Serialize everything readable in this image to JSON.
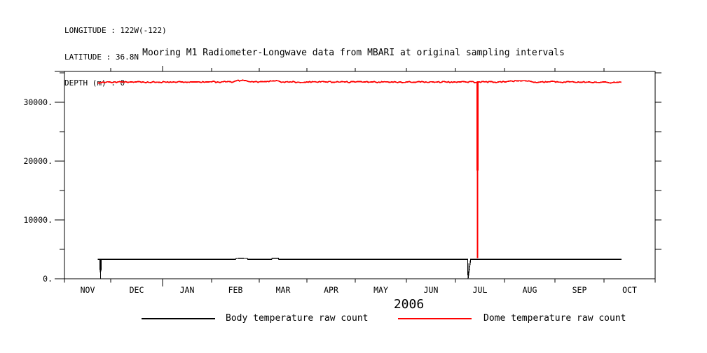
{
  "page": {
    "background": "#ffffff"
  },
  "header": {
    "longitude": "LONGITUDE : 122W(-122)",
    "latitude": "LATITUDE : 36.8N",
    "depth": "DEPTH (m) : 0"
  },
  "legend": {
    "items": [
      {
        "label": "Body temperature raw count",
        "color": "#000000"
      },
      {
        "label": "Dome temperature raw count",
        "color": "#ff0000"
      }
    ]
  },
  "chart_data": {
    "type": "line",
    "title": "Mooring M1 Radiometer-Longwave data from MBARI at original sampling intervals",
    "xlabel": "",
    "ylabel": "",
    "x_axis": {
      "months": [
        "NOV",
        "DEC",
        "JAN",
        "FEB",
        "MAR",
        "APR",
        "MAY",
        "JUN",
        "JUL",
        "AUG",
        "SEP",
        "OCT"
      ],
      "year_label": "2006",
      "start": "1 Nov 2005",
      "end": "1 Nov 2006",
      "unit": "months since 1 Nov 2005"
    },
    "y_axis": {
      "tick_values": [
        0,
        10000,
        20000,
        30000
      ],
      "tick_labels": [
        "0.",
        "10000.",
        "20000.",
        "30000."
      ],
      "minor_tick_values": [
        5000,
        15000,
        25000,
        35000
      ],
      "range": [
        0,
        35200
      ],
      "grid": false
    },
    "series": [
      {
        "name": "Body temperature raw count",
        "color": "#000000",
        "width": 1.3,
        "points": [
          [
            0.72,
            3300
          ],
          [
            0.775,
            3300
          ],
          [
            0.78,
            60
          ],
          [
            0.785,
            3300
          ],
          [
            3.5,
            3300
          ],
          [
            3.52,
            3450
          ],
          [
            3.56,
            3450
          ],
          [
            3.57,
            3500
          ],
          [
            3.66,
            3500
          ],
          [
            3.68,
            3450
          ],
          [
            3.75,
            3450
          ],
          [
            3.76,
            3300
          ],
          [
            4.26,
            3300
          ],
          [
            4.27,
            3500
          ],
          [
            4.4,
            3500
          ],
          [
            4.41,
            3300
          ],
          [
            8.25,
            3300
          ],
          [
            8.257,
            20
          ],
          [
            8.31,
            3300
          ],
          [
            11.34,
            3300
          ]
        ]
      },
      {
        "name": "Dome temperature raw count",
        "color": "#ff0000",
        "width": 1.8,
        "noise_amplitude": 110,
        "points": [
          [
            0.72,
            33300
          ],
          [
            0.8,
            33350
          ],
          [
            0.9,
            33420
          ],
          [
            1.05,
            33380
          ],
          [
            1.2,
            33470
          ],
          [
            1.35,
            33400
          ],
          [
            1.5,
            33450
          ],
          [
            1.65,
            33380
          ],
          [
            1.8,
            33440
          ],
          [
            1.95,
            33400
          ],
          [
            2.1,
            33470
          ],
          [
            2.25,
            33420
          ],
          [
            2.4,
            33460
          ],
          [
            2.55,
            33400
          ],
          [
            2.7,
            33450
          ],
          [
            2.85,
            33410
          ],
          [
            3.0,
            33470
          ],
          [
            3.15,
            33420
          ],
          [
            3.3,
            33460
          ],
          [
            3.45,
            33430
          ],
          [
            3.52,
            33650
          ],
          [
            3.62,
            33700
          ],
          [
            3.75,
            33600
          ],
          [
            3.82,
            33460
          ],
          [
            4.0,
            33480
          ],
          [
            4.26,
            33600
          ],
          [
            4.42,
            33570
          ],
          [
            4.5,
            33440
          ],
          [
            4.65,
            33480
          ],
          [
            4.8,
            33420
          ],
          [
            5.0,
            33460
          ],
          [
            5.2,
            33420
          ],
          [
            5.4,
            33470
          ],
          [
            5.6,
            33430
          ],
          [
            5.8,
            33460
          ],
          [
            6.0,
            33420
          ],
          [
            6.2,
            33460
          ],
          [
            6.4,
            33430
          ],
          [
            6.6,
            33470
          ],
          [
            6.8,
            33420
          ],
          [
            7.0,
            33450
          ],
          [
            7.2,
            33420
          ],
          [
            7.4,
            33460
          ],
          [
            7.6,
            33420
          ],
          [
            7.8,
            33450
          ],
          [
            8.0,
            33430
          ],
          [
            8.2,
            33460
          ],
          [
            8.447,
            33430
          ],
          [
            8.45,
            3500
          ],
          [
            8.453,
            33450
          ],
          [
            8.6,
            33460
          ],
          [
            8.8,
            33430
          ],
          [
            9.0,
            33470
          ],
          [
            9.15,
            33600
          ],
          [
            9.3,
            33650
          ],
          [
            9.45,
            33580
          ],
          [
            9.55,
            33460
          ],
          [
            9.7,
            33430
          ],
          [
            9.9,
            33470
          ],
          [
            10.1,
            33420
          ],
          [
            10.3,
            33460
          ],
          [
            10.5,
            33410
          ],
          [
            10.7,
            33460
          ],
          [
            10.9,
            33350
          ],
          [
            11.0,
            33440
          ],
          [
            11.1,
            33300
          ],
          [
            11.2,
            33420
          ],
          [
            11.34,
            33380
          ]
        ]
      }
    ],
    "dropouts": [
      {
        "series": "Body temperature raw count",
        "x_month": 0.78,
        "date_approx": "late Nov 2005",
        "from_value": 3300,
        "min_value": 0,
        "thick_to": 1500
      },
      {
        "series": "Body temperature raw count",
        "x_month": 8.26,
        "date_approx": "early Jul 2006",
        "from_value": 3300,
        "min_value": 0
      },
      {
        "series": "Dome temperature raw count",
        "x_month": 8.45,
        "date_approx": "mid Jul 2006",
        "from_value": 33430,
        "min_value": 3500,
        "thick_to": 18400
      }
    ]
  }
}
